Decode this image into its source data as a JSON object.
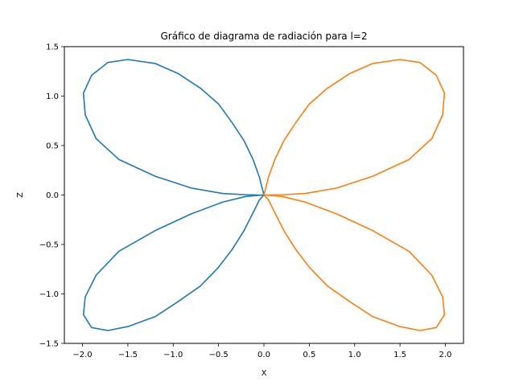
{
  "chart_data": {
    "type": "line",
    "title": "Gráfico de diagrama de radiación para l=2",
    "xlabel": "X",
    "ylabel": "Z",
    "xlim": [
      -2.2,
      2.2
    ],
    "ylim": [
      -1.5,
      1.5
    ],
    "xticks": [
      -2.0,
      -1.5,
      -1.0,
      -0.5,
      0.0,
      0.5,
      1.0,
      1.5,
      2.0
    ],
    "xtick_labels": [
      "−2.0",
      "−1.5",
      "−1.0",
      "−0.5",
      "0.0",
      "0.5",
      "1.0",
      "1.5",
      "2.0"
    ],
    "yticks": [
      -1.5,
      -1.0,
      -0.5,
      0.0,
      0.5,
      1.0,
      1.5
    ],
    "ytick_labels": [
      "−1.5",
      "−1.0",
      "−0.5",
      "0.0",
      "0.5",
      "1.0",
      "1.5"
    ],
    "grid": false,
    "series": [
      {
        "color": "#1f77b4",
        "x": [
          0.0,
          -0.05,
          -0.12,
          -0.22,
          -0.35,
          -0.5,
          -0.7,
          -0.95,
          -1.2,
          -1.5,
          -1.72,
          -1.9,
          -1.99,
          -1.97,
          -1.85,
          -1.6,
          -1.2,
          -0.8,
          -0.45,
          -0.2,
          -0.05,
          0.0,
          -0.05,
          -0.2,
          -0.45,
          -0.8,
          -1.2,
          -1.6,
          -1.85,
          -1.97,
          -1.99,
          -1.9,
          -1.72,
          -1.5,
          -1.2,
          -0.95,
          -0.7,
          -0.5,
          -0.35,
          -0.22,
          -0.12,
          -0.05,
          0.0
        ],
        "y": [
          0.0,
          0.18,
          0.36,
          0.55,
          0.73,
          0.92,
          1.08,
          1.23,
          1.33,
          1.37,
          1.34,
          1.21,
          1.03,
          0.81,
          0.57,
          0.36,
          0.19,
          0.07,
          0.015,
          0.003,
          0.0,
          0.0,
          -0.003,
          -0.015,
          -0.07,
          -0.19,
          -0.36,
          -0.57,
          -0.81,
          -1.03,
          -1.21,
          -1.34,
          -1.37,
          -1.33,
          -1.23,
          -1.08,
          -0.92,
          -0.73,
          -0.55,
          -0.36,
          -0.18,
          -0.05,
          0.0
        ]
      },
      {
        "color": "#ff7f0e",
        "x": [
          0.0,
          0.05,
          0.12,
          0.22,
          0.35,
          0.5,
          0.7,
          0.95,
          1.2,
          1.5,
          1.72,
          1.9,
          1.99,
          1.97,
          1.85,
          1.6,
          1.2,
          0.8,
          0.45,
          0.2,
          0.05,
          0.0,
          0.05,
          0.2,
          0.45,
          0.8,
          1.2,
          1.6,
          1.85,
          1.97,
          1.99,
          1.9,
          1.72,
          1.5,
          1.2,
          0.95,
          0.7,
          0.5,
          0.35,
          0.22,
          0.12,
          0.05,
          0.0
        ],
        "y": [
          0.0,
          0.18,
          0.36,
          0.55,
          0.73,
          0.92,
          1.08,
          1.23,
          1.33,
          1.37,
          1.34,
          1.21,
          1.03,
          0.81,
          0.57,
          0.36,
          0.19,
          0.07,
          0.015,
          0.003,
          0.0,
          0.0,
          -0.003,
          -0.015,
          -0.07,
          -0.19,
          -0.36,
          -0.57,
          -0.81,
          -1.03,
          -1.21,
          -1.34,
          -1.37,
          -1.33,
          -1.23,
          -1.08,
          -0.92,
          -0.73,
          -0.55,
          -0.36,
          -0.18,
          -0.05,
          0.0
        ]
      }
    ]
  }
}
